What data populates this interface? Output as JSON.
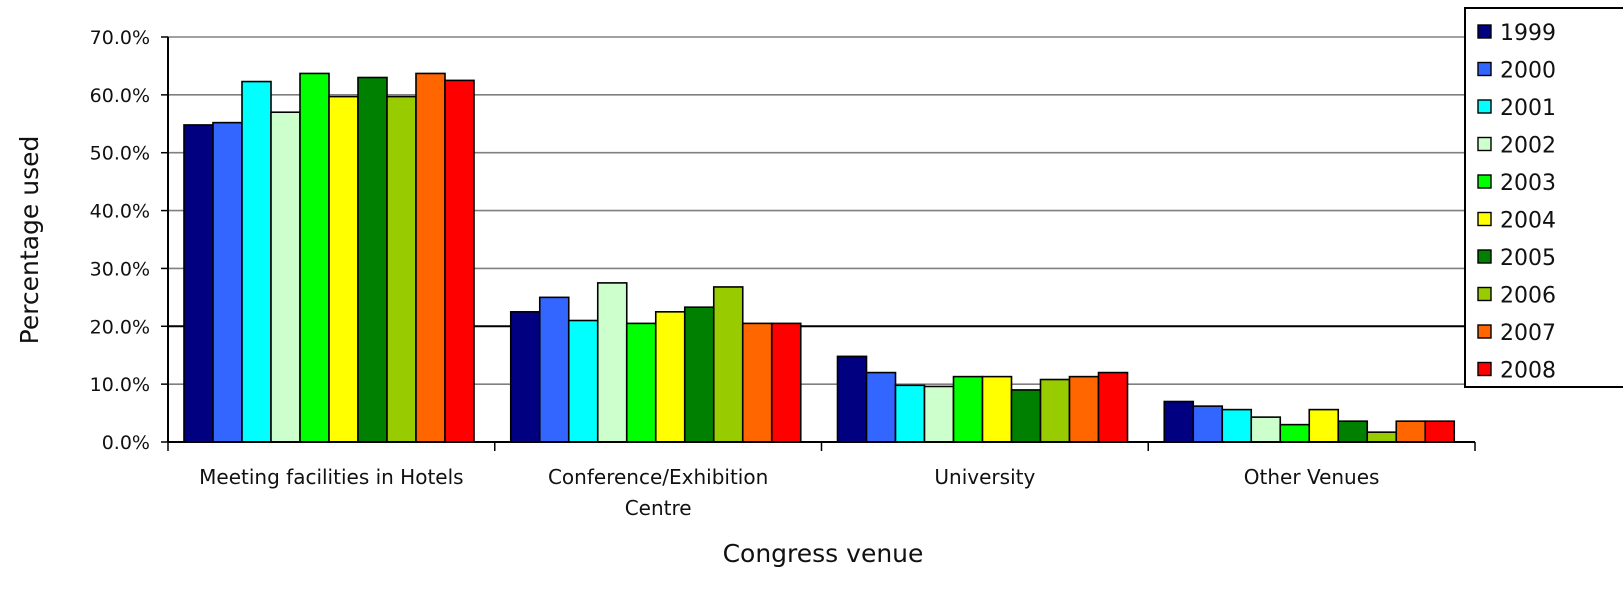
{
  "chart_data": {
    "type": "bar",
    "title": "",
    "xlabel": "Congress venue",
    "ylabel": "Percentage used",
    "ylim": [
      0,
      70
    ],
    "yticks": [
      "0.0%",
      "10.0%",
      "20.0%",
      "30.0%",
      "40.0%",
      "50.0%",
      "60.0%",
      "70.0%"
    ],
    "grid": true,
    "legend": "right",
    "categories": [
      [
        "Meeting facilities in Hotels"
      ],
      [
        "Conference/Exhibition",
        "Centre"
      ],
      [
        "University"
      ],
      [
        "Other Venues"
      ]
    ],
    "series": [
      {
        "name": "1999",
        "color": "#000080",
        "values": [
          54.8,
          22.5,
          14.8,
          7.0
        ]
      },
      {
        "name": "2000",
        "color": "#3366ff",
        "values": [
          55.2,
          25.0,
          12.0,
          6.2
        ]
      },
      {
        "name": "2001",
        "color": "#00ffff",
        "values": [
          62.3,
          21.0,
          9.8,
          5.6
        ]
      },
      {
        "name": "2002",
        "color": "#ccffcc",
        "values": [
          57.0,
          27.5,
          9.6,
          4.3
        ]
      },
      {
        "name": "2003",
        "color": "#00ff00",
        "values": [
          63.7,
          20.5,
          11.3,
          3.0
        ]
      },
      {
        "name": "2004",
        "color": "#ffff00",
        "values": [
          59.7,
          22.5,
          11.3,
          5.6
        ]
      },
      {
        "name": "2005",
        "color": "#008000",
        "values": [
          63.0,
          23.3,
          9.0,
          3.6
        ]
      },
      {
        "name": "2006",
        "color": "#99cc00",
        "values": [
          59.7,
          26.8,
          10.8,
          1.7
        ]
      },
      {
        "name": "2007",
        "color": "#ff6600",
        "values": [
          63.7,
          20.5,
          11.3,
          3.6
        ]
      },
      {
        "name": "2008",
        "color": "#ff0000",
        "values": [
          62.5,
          20.5,
          12.0,
          3.6
        ]
      }
    ]
  }
}
